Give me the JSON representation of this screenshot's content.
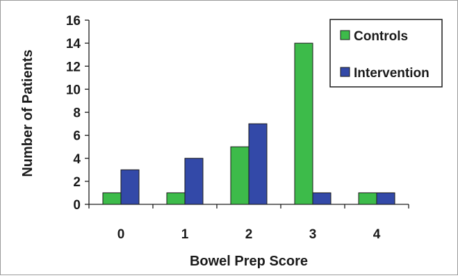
{
  "chart_data": {
    "type": "bar",
    "title": "",
    "xlabel": "Bowel Prep Score",
    "ylabel": "Number of Patients",
    "categories": [
      "0",
      "1",
      "2",
      "3",
      "4"
    ],
    "series": [
      {
        "name": "Controls",
        "color": "#3dbb4a",
        "values": [
          1,
          1,
          5,
          14,
          1
        ]
      },
      {
        "name": "Intervention",
        "color": "#3349a8",
        "values": [
          3,
          4,
          7,
          1,
          1
        ]
      }
    ],
    "ylim": [
      0,
      16
    ],
    "yticks": [
      "0",
      "2",
      "4",
      "6",
      "8",
      "10",
      "12",
      "14",
      "16"
    ],
    "grid": false,
    "legend_position": "top-right"
  }
}
